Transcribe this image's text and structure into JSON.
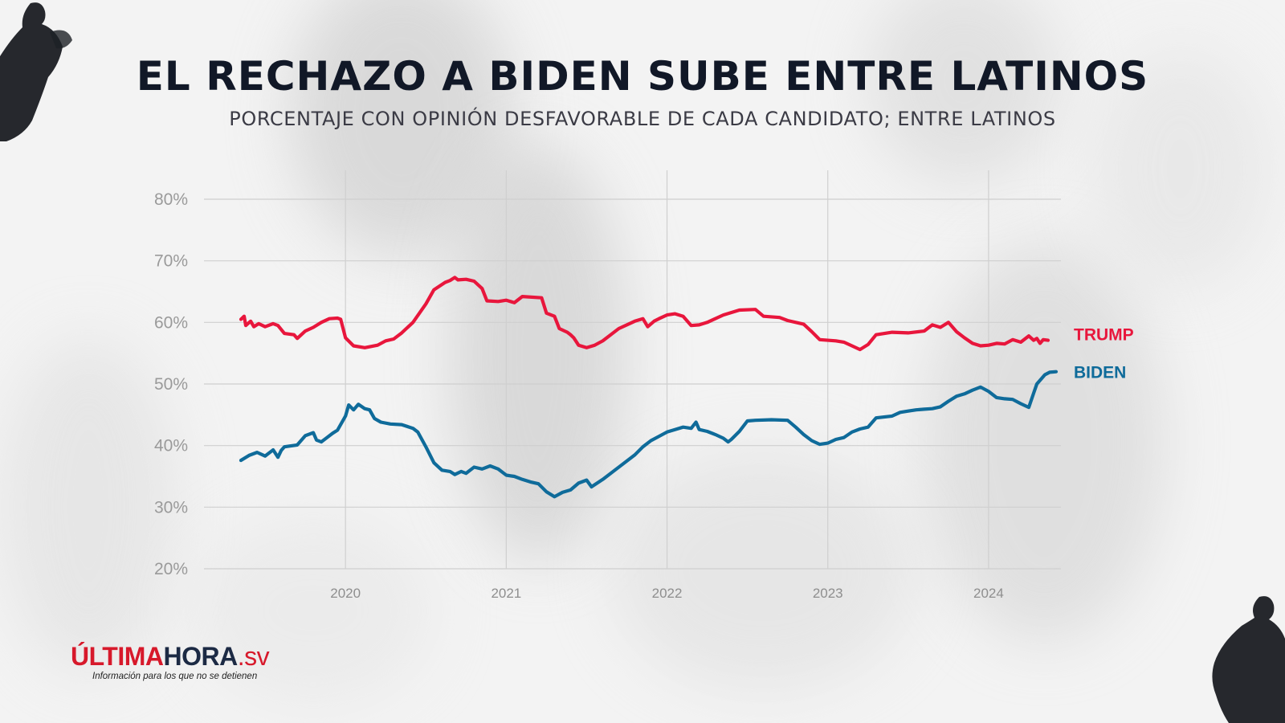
{
  "header": {
    "title": "EL RECHAZO A BIDEN SUBE ENTRE LATINOS",
    "subtitle": "PORCENTAJE CON OPINIÓN DESFAVORABLE DE CADA CANDIDATO; ENTRE LATINOS"
  },
  "branding": {
    "logo_part1": "ÚLTIMA",
    "logo_part2": "HORA",
    "logo_part3": ".sv",
    "tagline": "Información para los que no se detienen",
    "logo_colors": {
      "red": "#d7192b",
      "dark": "#1c2a44"
    }
  },
  "chart_data": {
    "type": "line",
    "title": "EL RECHAZO A BIDEN SUBE ENTRE LATINOS",
    "subtitle": "PORCENTAJE CON OPINIÓN DESFAVORABLE DE CADA CANDIDATO; ENTRE LATINOS",
    "xlabel": "",
    "ylabel": "",
    "x_ticks": [
      "2020",
      "2021",
      "2022",
      "2023",
      "2024"
    ],
    "y_ticks": [
      "20%",
      "30%",
      "40%",
      "50%",
      "60%",
      "70%",
      "80%"
    ],
    "ylim": [
      20,
      80
    ],
    "xlim": [
      2019.12,
      2024.45
    ],
    "grid": true,
    "legend": "direct labels at right end of lines",
    "series": [
      {
        "name": "TRUMP",
        "color": "#e8163c",
        "points": [
          [
            2019.35,
            60.5
          ],
          [
            2019.37,
            61.0
          ],
          [
            2019.38,
            59.5
          ],
          [
            2019.41,
            60.2
          ],
          [
            2019.43,
            59.3
          ],
          [
            2019.46,
            59.8
          ],
          [
            2019.5,
            59.3
          ],
          [
            2019.55,
            59.8
          ],
          [
            2019.58,
            59.5
          ],
          [
            2019.62,
            58.2
          ],
          [
            2019.68,
            58.0
          ],
          [
            2019.7,
            57.4
          ],
          [
            2019.75,
            58.6
          ],
          [
            2019.8,
            59.2
          ],
          [
            2019.85,
            60.0
          ],
          [
            2019.9,
            60.6
          ],
          [
            2019.95,
            60.7
          ],
          [
            2019.97,
            60.5
          ],
          [
            2020.0,
            57.5
          ],
          [
            2020.05,
            56.2
          ],
          [
            2020.12,
            55.9
          ],
          [
            2020.2,
            56.3
          ],
          [
            2020.25,
            57.0
          ],
          [
            2020.3,
            57.3
          ],
          [
            2020.35,
            58.3
          ],
          [
            2020.42,
            60.0
          ],
          [
            2020.5,
            63.0
          ],
          [
            2020.55,
            65.3
          ],
          [
            2020.62,
            66.5
          ],
          [
            2020.65,
            66.8
          ],
          [
            2020.68,
            67.3
          ],
          [
            2020.7,
            66.9
          ],
          [
            2020.75,
            67.0
          ],
          [
            2020.8,
            66.7
          ],
          [
            2020.85,
            65.5
          ],
          [
            2020.88,
            63.5
          ],
          [
            2020.95,
            63.4
          ],
          [
            2021.0,
            63.6
          ],
          [
            2021.05,
            63.2
          ],
          [
            2021.1,
            64.2
          ],
          [
            2021.22,
            64.0
          ],
          [
            2021.25,
            61.5
          ],
          [
            2021.3,
            61.0
          ],
          [
            2021.33,
            59.0
          ],
          [
            2021.38,
            58.4
          ],
          [
            2021.4,
            58.0
          ],
          [
            2021.42,
            57.5
          ],
          [
            2021.45,
            56.3
          ],
          [
            2021.5,
            55.9
          ],
          [
            2021.55,
            56.3
          ],
          [
            2021.6,
            57.0
          ],
          [
            2021.7,
            59.0
          ],
          [
            2021.8,
            60.2
          ],
          [
            2021.85,
            60.6
          ],
          [
            2021.88,
            59.3
          ],
          [
            2021.92,
            60.2
          ],
          [
            2021.95,
            60.6
          ],
          [
            2022.0,
            61.2
          ],
          [
            2022.05,
            61.4
          ],
          [
            2022.1,
            61.0
          ],
          [
            2022.15,
            59.5
          ],
          [
            2022.2,
            59.6
          ],
          [
            2022.25,
            60.0
          ],
          [
            2022.35,
            61.2
          ],
          [
            2022.45,
            62.0
          ],
          [
            2022.55,
            62.1
          ],
          [
            2022.6,
            61.0
          ],
          [
            2022.7,
            60.8
          ],
          [
            2022.75,
            60.3
          ],
          [
            2022.85,
            59.7
          ],
          [
            2022.9,
            58.5
          ],
          [
            2022.95,
            57.2
          ],
          [
            2023.05,
            57.0
          ],
          [
            2023.1,
            56.8
          ],
          [
            2023.15,
            56.2
          ],
          [
            2023.2,
            55.6
          ],
          [
            2023.25,
            56.4
          ],
          [
            2023.3,
            58.0
          ],
          [
            2023.4,
            58.4
          ],
          [
            2023.5,
            58.3
          ],
          [
            2023.6,
            58.6
          ],
          [
            2023.65,
            59.6
          ],
          [
            2023.7,
            59.2
          ],
          [
            2023.75,
            60.0
          ],
          [
            2023.8,
            58.5
          ],
          [
            2023.85,
            57.5
          ],
          [
            2023.9,
            56.6
          ],
          [
            2023.95,
            56.2
          ],
          [
            2024.0,
            56.3
          ],
          [
            2024.05,
            56.6
          ],
          [
            2024.1,
            56.5
          ],
          [
            2024.15,
            57.2
          ],
          [
            2024.2,
            56.8
          ],
          [
            2024.25,
            57.8
          ],
          [
            2024.28,
            57.1
          ],
          [
            2024.3,
            57.4
          ],
          [
            2024.32,
            56.6
          ],
          [
            2024.34,
            57.2
          ],
          [
            2024.37,
            57.1
          ]
        ]
      },
      {
        "name": "BIDEN",
        "color": "#0f6b9a",
        "points": [
          [
            2019.35,
            37.6
          ],
          [
            2019.4,
            38.4
          ],
          [
            2019.45,
            38.9
          ],
          [
            2019.5,
            38.3
          ],
          [
            2019.55,
            39.3
          ],
          [
            2019.58,
            38.1
          ],
          [
            2019.6,
            39.2
          ],
          [
            2019.62,
            39.8
          ],
          [
            2019.7,
            40.1
          ],
          [
            2019.75,
            41.6
          ],
          [
            2019.8,
            42.1
          ],
          [
            2019.82,
            40.9
          ],
          [
            2019.85,
            40.6
          ],
          [
            2019.88,
            41.2
          ],
          [
            2019.92,
            42.0
          ],
          [
            2019.95,
            42.5
          ],
          [
            2020.0,
            44.8
          ],
          [
            2020.02,
            46.6
          ],
          [
            2020.05,
            45.8
          ],
          [
            2020.08,
            46.7
          ],
          [
            2020.12,
            46.0
          ],
          [
            2020.15,
            45.8
          ],
          [
            2020.18,
            44.4
          ],
          [
            2020.22,
            43.8
          ],
          [
            2020.28,
            43.5
          ],
          [
            2020.35,
            43.4
          ],
          [
            2020.42,
            42.8
          ],
          [
            2020.45,
            42.2
          ],
          [
            2020.5,
            39.8
          ],
          [
            2020.55,
            37.2
          ],
          [
            2020.6,
            36.0
          ],
          [
            2020.65,
            35.8
          ],
          [
            2020.68,
            35.3
          ],
          [
            2020.72,
            35.8
          ],
          [
            2020.75,
            35.5
          ],
          [
            2020.8,
            36.5
          ],
          [
            2020.85,
            36.2
          ],
          [
            2020.9,
            36.7
          ],
          [
            2020.95,
            36.2
          ],
          [
            2021.0,
            35.2
          ],
          [
            2021.05,
            35.0
          ],
          [
            2021.1,
            34.5
          ],
          [
            2021.15,
            34.1
          ],
          [
            2021.2,
            33.8
          ],
          [
            2021.25,
            32.5
          ],
          [
            2021.3,
            31.7
          ],
          [
            2021.35,
            32.4
          ],
          [
            2021.4,
            32.8
          ],
          [
            2021.45,
            33.9
          ],
          [
            2021.5,
            34.4
          ],
          [
            2021.53,
            33.3
          ],
          [
            2021.6,
            34.5
          ],
          [
            2021.7,
            36.5
          ],
          [
            2021.8,
            38.5
          ],
          [
            2021.85,
            39.8
          ],
          [
            2021.9,
            40.8
          ],
          [
            2021.95,
            41.5
          ],
          [
            2022.0,
            42.2
          ],
          [
            2022.05,
            42.6
          ],
          [
            2022.1,
            43.0
          ],
          [
            2022.15,
            42.8
          ],
          [
            2022.18,
            43.8
          ],
          [
            2022.2,
            42.6
          ],
          [
            2022.25,
            42.3
          ],
          [
            2022.3,
            41.8
          ],
          [
            2022.35,
            41.2
          ],
          [
            2022.38,
            40.6
          ],
          [
            2022.4,
            41.0
          ],
          [
            2022.45,
            42.3
          ],
          [
            2022.5,
            44.0
          ],
          [
            2022.55,
            44.1
          ],
          [
            2022.65,
            44.2
          ],
          [
            2022.75,
            44.1
          ],
          [
            2022.8,
            43.0
          ],
          [
            2022.85,
            41.8
          ],
          [
            2022.9,
            40.8
          ],
          [
            2022.95,
            40.2
          ],
          [
            2023.0,
            40.4
          ],
          [
            2023.05,
            41.0
          ],
          [
            2023.1,
            41.3
          ],
          [
            2023.15,
            42.2
          ],
          [
            2023.2,
            42.7
          ],
          [
            2023.25,
            43.0
          ],
          [
            2023.3,
            44.5
          ],
          [
            2023.4,
            44.8
          ],
          [
            2023.45,
            45.4
          ],
          [
            2023.5,
            45.6
          ],
          [
            2023.55,
            45.8
          ],
          [
            2023.6,
            45.9
          ],
          [
            2023.65,
            46.0
          ],
          [
            2023.7,
            46.3
          ],
          [
            2023.75,
            47.2
          ],
          [
            2023.8,
            48.0
          ],
          [
            2023.85,
            48.4
          ],
          [
            2023.9,
            49.0
          ],
          [
            2023.95,
            49.5
          ],
          [
            2024.0,
            48.8
          ],
          [
            2024.05,
            47.8
          ],
          [
            2024.1,
            47.6
          ],
          [
            2024.15,
            47.5
          ],
          [
            2024.2,
            46.8
          ],
          [
            2024.25,
            46.2
          ],
          [
            2024.28,
            48.5
          ],
          [
            2024.3,
            50.0
          ],
          [
            2024.35,
            51.5
          ],
          [
            2024.38,
            51.9
          ],
          [
            2024.42,
            52.0
          ]
        ]
      }
    ]
  }
}
